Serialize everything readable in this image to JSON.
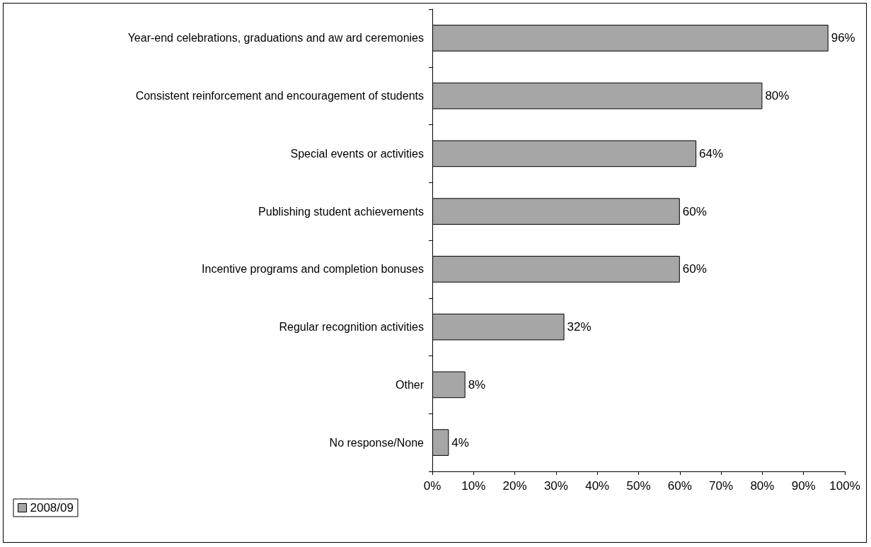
{
  "chart_data": {
    "type": "bar",
    "orientation": "horizontal",
    "categories": [
      "Year-end celebrations, graduations and aw ard ceremonies",
      "Consistent reinforcement and encouragement of students",
      "Special events or activities",
      "Publishing student achievements",
      "Incentive programs and completion bonuses",
      "Regular recognition activities",
      "Other",
      "No response/None"
    ],
    "series": [
      {
        "name": "2008/09",
        "color": "#a6a6a6",
        "values": [
          96,
          80,
          64,
          60,
          60,
          32,
          8,
          4
        ],
        "value_labels": [
          "96%",
          "80%",
          "64%",
          "60%",
          "60%",
          "32%",
          "8%",
          "4%"
        ]
      }
    ],
    "xlim": [
      0,
      100
    ],
    "xticks": [
      {
        "value": 0,
        "label": "0%"
      },
      {
        "value": 10,
        "label": "10%"
      },
      {
        "value": 20,
        "label": "20%"
      },
      {
        "value": 30,
        "label": "30%"
      },
      {
        "value": 40,
        "label": "40%"
      },
      {
        "value": 50,
        "label": "50%"
      },
      {
        "value": 60,
        "label": "60%"
      },
      {
        "value": 70,
        "label": "70%"
      },
      {
        "value": 80,
        "label": "80%"
      },
      {
        "value": 90,
        "label": "90%"
      },
      {
        "value": 100,
        "label": "100%"
      }
    ],
    "grid": false,
    "legend": "bottom left"
  }
}
